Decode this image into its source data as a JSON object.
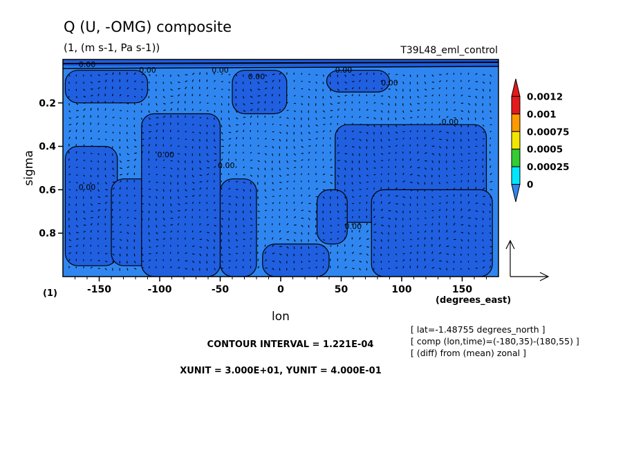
{
  "chart_data": {
    "type": "heatmap",
    "title": "Q (U, -OMG) composite",
    "subtitle": "(1, (m s-1, Pa s-1))",
    "run_label": "T39L48_eml_control",
    "xlabel": "lon",
    "xunit_label": "(degrees_east)",
    "ylabel": "sigma",
    "yunit_label": "(1)",
    "xlim": [
      -180,
      180
    ],
    "ylim": [
      1.0,
      0.0
    ],
    "xticks": [
      {
        "value": -150,
        "label": "-150"
      },
      {
        "value": -100,
        "label": "-100"
      },
      {
        "value": -50,
        "label": "-50"
      },
      {
        "value": 0,
        "label": "0"
      },
      {
        "value": 50,
        "label": "50"
      },
      {
        "value": 100,
        "label": "100"
      },
      {
        "value": 150,
        "label": "150"
      }
    ],
    "yticks": [
      {
        "value": 0.2,
        "label": "0.2"
      },
      {
        "value": 0.4,
        "label": "0.4"
      },
      {
        "value": 0.6,
        "label": "0.6"
      },
      {
        "value": 0.8,
        "label": "0.8"
      }
    ],
    "colorbar": [
      {
        "label": "0.0012",
        "color": "#e41a1c"
      },
      {
        "label": "0.001",
        "color": "#ff9900"
      },
      {
        "label": "0.00075",
        "color": "#f2e600"
      },
      {
        "label": "0.0005",
        "color": "#33cc33"
      },
      {
        "label": "0.00025",
        "color": "#00e6ff"
      },
      {
        "label": "0",
        "color": "#2f86f0"
      }
    ],
    "fill_colors": {
      "below_zero": "#1f5fe0",
      "zero_to_0_00025": "#2f86f0"
    },
    "contour_label": "0.00",
    "regions_below_zero": [
      {
        "lon": [
          -178,
          -135
        ],
        "sigma": [
          0.4,
          0.95
        ]
      },
      {
        "lon": [
          -140,
          -105
        ],
        "sigma": [
          0.55,
          0.95
        ]
      },
      {
        "lon": [
          -115,
          -50
        ],
        "sigma": [
          0.25,
          1.0
        ]
      },
      {
        "lon": [
          -50,
          -20
        ],
        "sigma": [
          0.55,
          1.0
        ]
      },
      {
        "lon": [
          -178,
          -110
        ],
        "sigma": [
          0.05,
          0.2
        ]
      },
      {
        "lon": [
          -40,
          5
        ],
        "sigma": [
          0.05,
          0.25
        ]
      },
      {
        "lon": [
          38,
          90
        ],
        "sigma": [
          0.05,
          0.15
        ]
      },
      {
        "lon": [
          45,
          170
        ],
        "sigma": [
          0.3,
          0.75
        ]
      },
      {
        "lon": [
          75,
          175
        ],
        "sigma": [
          0.6,
          1.0
        ]
      },
      {
        "lon": [
          30,
          55
        ],
        "sigma": [
          0.6,
          0.85
        ]
      },
      {
        "lon": [
          -15,
          40
        ],
        "sigma": [
          0.85,
          1.0
        ]
      }
    ],
    "vector_key": {
      "xunit": 30.0,
      "yunit": 0.4
    },
    "contour_interval": 0.0001221
  },
  "info_lines": [
    "CONTOUR INTERVAL = 1.221E-04",
    "XUNIT = 3.000E+01, YUNIT = 4.000E-01"
  ],
  "meta_lines": [
    "[ lat=-1.48755 degrees_north ]",
    "[ comp (lon,time)=(-180,35)-(180,55) ]",
    "[ (diff) from (mean) zonal ]"
  ]
}
